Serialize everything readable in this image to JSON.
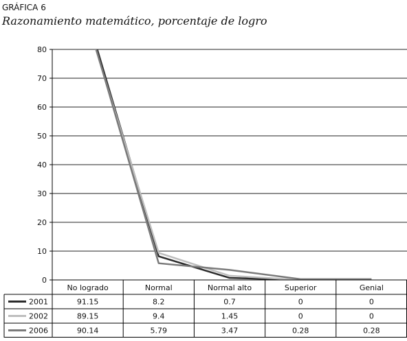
{
  "figure": {
    "label": "GRÁFICA 6",
    "title": "Razonamiento matemático, porcentaje de logro"
  },
  "chart_data": {
    "type": "line",
    "categories": [
      "No logrado",
      "Normal",
      "Normal alto",
      "Superior",
      "Genial"
    ],
    "ylim": [
      0,
      80
    ],
    "yticks": [
      "0",
      "10",
      "20",
      "30",
      "40",
      "50",
      "60",
      "70",
      "80"
    ],
    "grid": true,
    "series": [
      {
        "name": "2001",
        "values": [
          91.15,
          8.2,
          0.7,
          0,
          0
        ],
        "display": [
          "91.15",
          "8.2",
          "0.7",
          "0",
          "0"
        ],
        "color": "#2b2b2b"
      },
      {
        "name": "2002",
        "values": [
          89.15,
          9.4,
          1.45,
          0,
          0
        ],
        "display": [
          "89.15",
          "9.4",
          "1.45",
          "0",
          "0"
        ],
        "color": "#bdbdbd"
      },
      {
        "name": "2006",
        "values": [
          90.14,
          5.79,
          3.47,
          0.28,
          0.28
        ],
        "display": [
          "90.14",
          "5.79",
          "3.47",
          "0.28",
          "0.28"
        ],
        "color": "#7a7a7a"
      }
    ]
  }
}
